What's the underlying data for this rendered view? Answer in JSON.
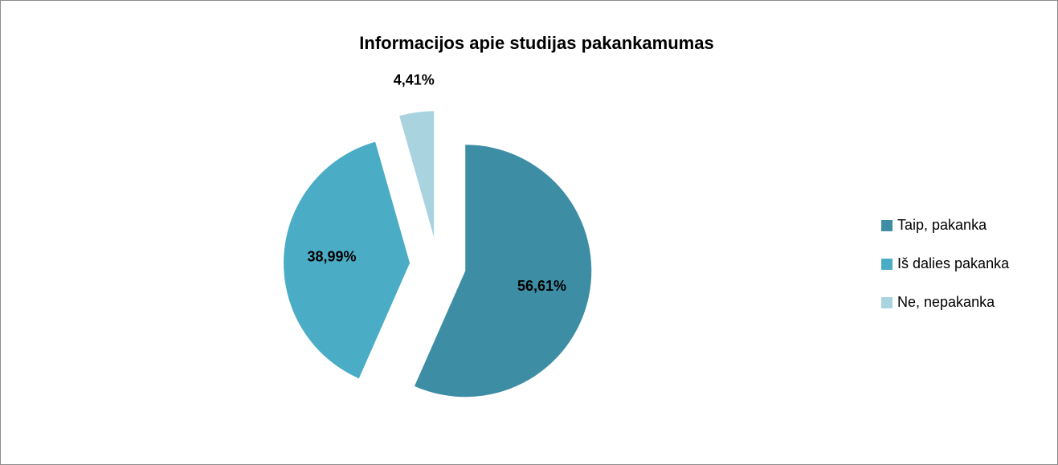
{
  "chart_data": {
    "type": "pie",
    "title": "Informacijos apie studijas pakankamumas",
    "categories": [
      "Taip, pakanka",
      "Iš dalies pakanka",
      "Ne, nepakanka"
    ],
    "values": [
      56.61,
      38.99,
      4.41
    ],
    "value_labels": [
      "56,61%",
      "38,99%",
      "4,41%"
    ],
    "colors": [
      "#3d8ea5",
      "#4bacc6",
      "#a8d3df"
    ],
    "legend": "right"
  }
}
